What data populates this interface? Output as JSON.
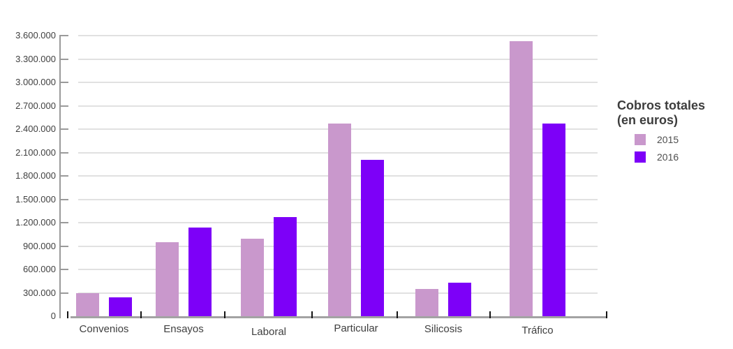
{
  "chart_data": {
    "type": "bar",
    "title": "Cobros totales (en euros)",
    "legend_title_lines": [
      "Cobros totales",
      "(en euros)"
    ],
    "legend_position": "right",
    "categories": [
      "Convenios",
      "Ensayos",
      "Laboral",
      "Particular",
      "Silicosis",
      "Tráfico"
    ],
    "series": [
      {
        "name": "2015",
        "color": "#c998cc",
        "values": [
          295000,
          950000,
          990000,
          2470000,
          345000,
          3530000
        ]
      },
      {
        "name": "2016",
        "color": "#7d00f8",
        "values": [
          245000,
          1140000,
          1270000,
          2010000,
          430000,
          2470000
        ]
      }
    ],
    "ylim": [
      0,
      3600000
    ],
    "y_tick_step": 300000,
    "y_tick_labels": [
      "0",
      "300.000",
      "600.000",
      "900.000",
      "1.200.000",
      "1.500.000",
      "1.800.000",
      "2.100.000",
      "2.400.000",
      "2.700.000",
      "3.000.000",
      "3.300.000",
      "3.600.000"
    ],
    "grid": "horizontal-only",
    "xlabel": "",
    "ylabel": ""
  },
  "colors": {
    "background": "#ffffff",
    "gridline": "#e1e1e1",
    "y_axis": "#9a9a9a",
    "x_axis_baseline": "#a3a3a3",
    "x_tick": "#141414",
    "axis_text": "#3f3f3f",
    "legend_title_text": "#3d3d3d",
    "legend_item_text": "#4f4f4f"
  }
}
